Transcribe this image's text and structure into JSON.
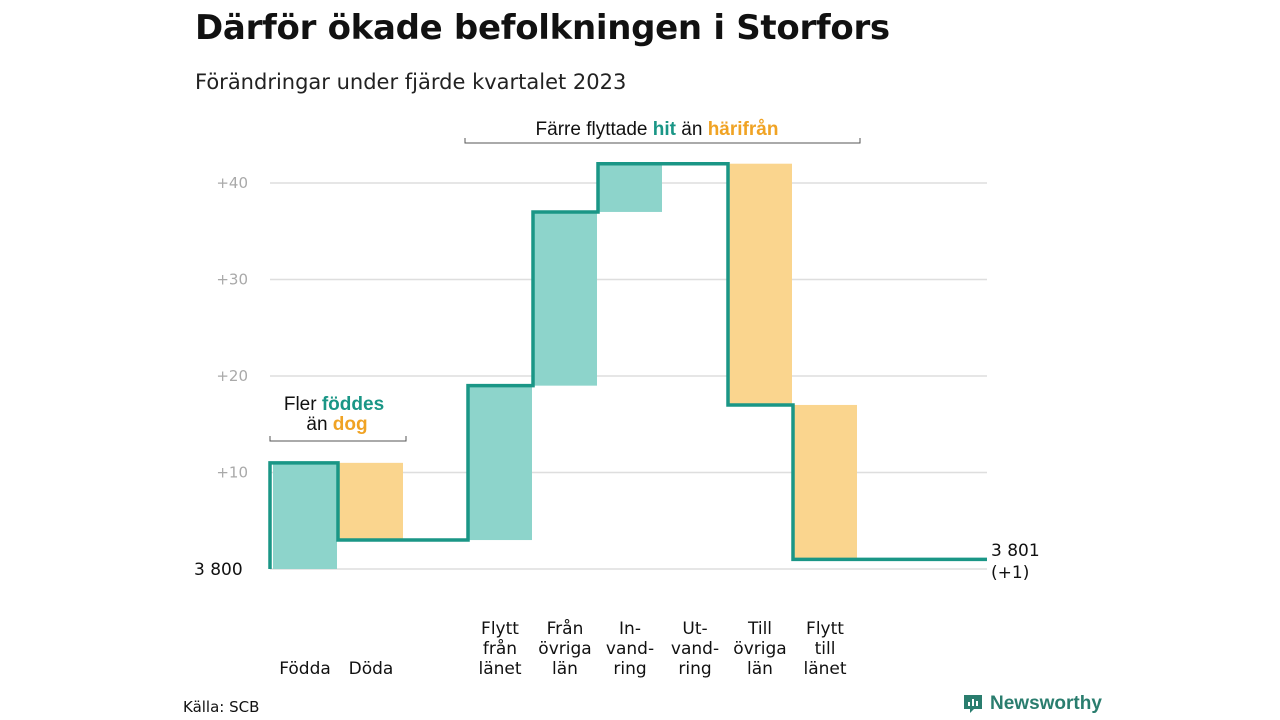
{
  "title": "Därför ökade befolkningen i Storfors",
  "subtitle": "Förändringar under fjärde kvartalet 2023",
  "source": "Källa: SCB",
  "brand": {
    "name": "Newsworthy",
    "icon": "newsworthy-logo-icon"
  },
  "colors": {
    "line": "#1a9686",
    "increase": "#8dd4cb",
    "decrease": "#fad58e",
    "grid": "#dedede",
    "accent_green": "#1a9686",
    "accent_orange": "#f0a324"
  },
  "annotations": {
    "births": {
      "line1_pre": "Fler ",
      "line1_hl": "föddes",
      "line2_pre": "än ",
      "line2_hl": "dog"
    },
    "moves": {
      "pre": "Färre flyttade ",
      "hl1": "hit",
      "mid": " än ",
      "hl2": "härifrån"
    }
  },
  "chart_data": {
    "type": "waterfall",
    "title": "Därför ökade befolkningen i Storfors",
    "subtitle": "Förändringar under fjärde kvartalet 2023",
    "baseline": 3800,
    "baseline_label": "3  800",
    "end_value": 3801,
    "end_label_line1": "3 801",
    "end_label_line2": "(+1)",
    "ylim": [
      0,
      42
    ],
    "yticks": [
      {
        "value": 10,
        "label": "+10"
      },
      {
        "value": 20,
        "label": "+20"
      },
      {
        "value": 30,
        "label": "+30"
      },
      {
        "value": 40,
        "label": "+40"
      }
    ],
    "grid": true,
    "steps": [
      {
        "category": "Födda",
        "label_lines": [
          "Födda"
        ],
        "change": 11,
        "start": 0,
        "end": 11,
        "type": "increase"
      },
      {
        "category": "Döda",
        "label_lines": [
          "Döda"
        ],
        "change": -8,
        "start": 11,
        "end": 3,
        "type": "decrease"
      },
      {
        "category": "Flytt från länet",
        "label_lines": [
          "Flytt",
          "från",
          "länet"
        ],
        "change": 16,
        "start": 3,
        "end": 19,
        "type": "increase"
      },
      {
        "category": "Från övriga län",
        "label_lines": [
          "Från",
          "övriga",
          "län"
        ],
        "change": 18,
        "start": 19,
        "end": 37,
        "type": "increase"
      },
      {
        "category": "Invandring",
        "label_lines": [
          "In-",
          "vand-",
          "ring"
        ],
        "change": 5,
        "start": 37,
        "end": 42,
        "type": "increase"
      },
      {
        "category": "Utvandring",
        "label_lines": [
          "Ut-",
          "vand-",
          "ring"
        ],
        "change": 0,
        "start": 42,
        "end": 42,
        "type": "decrease"
      },
      {
        "category": "Till övriga län",
        "label_lines": [
          "Till",
          "övriga",
          "län"
        ],
        "change": -25,
        "start": 42,
        "end": 17,
        "type": "decrease"
      },
      {
        "category": "Flytt till länet",
        "label_lines": [
          "Flytt",
          "till",
          "länet"
        ],
        "change": -16,
        "start": 17,
        "end": 1,
        "type": "decrease"
      }
    ]
  }
}
